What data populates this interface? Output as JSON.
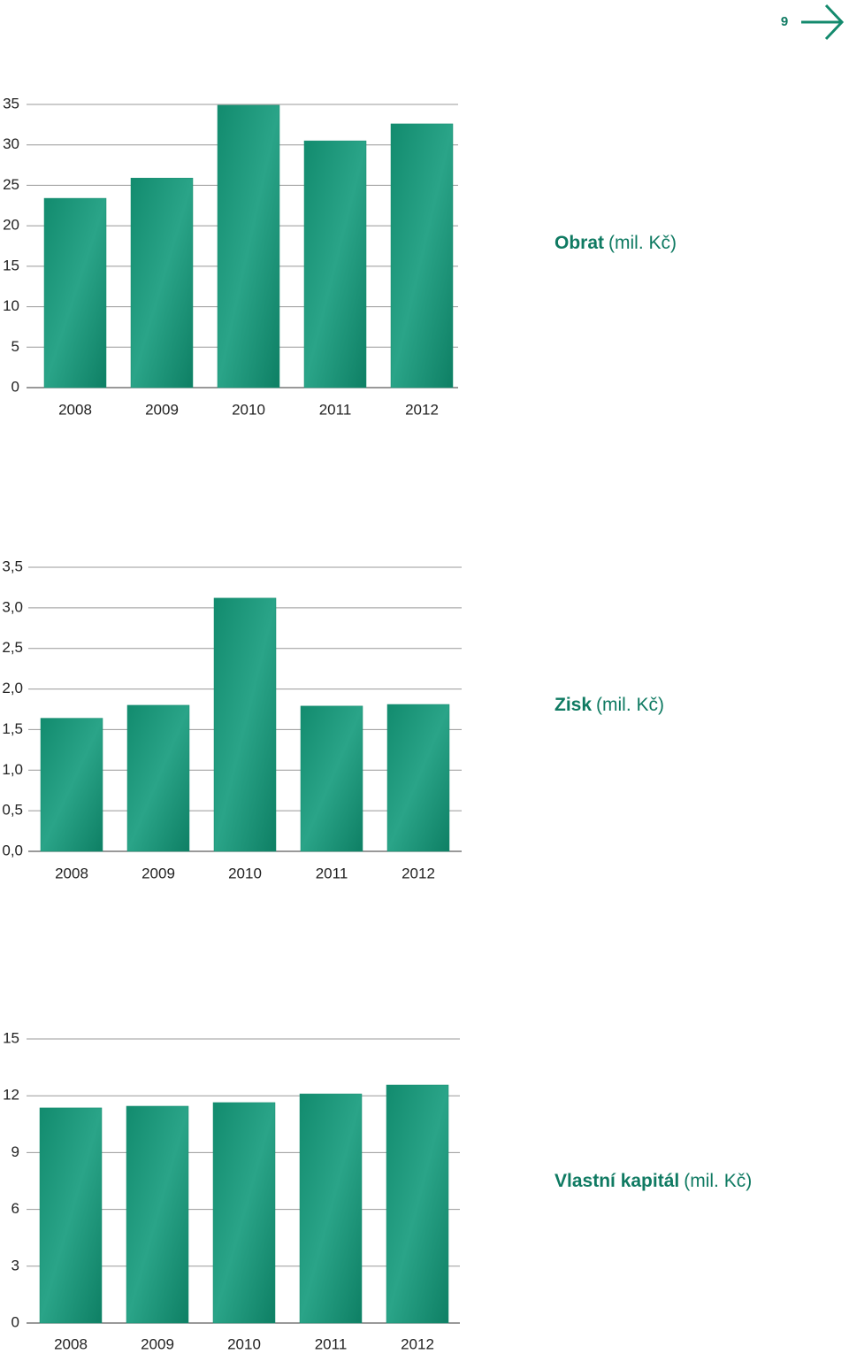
{
  "page_number": "9",
  "chart_data": [
    {
      "type": "bar",
      "title": "Obrat",
      "unit": "(mil. Kč)",
      "categories": [
        "2008",
        "2009",
        "2010",
        "2011",
        "2012"
      ],
      "values": [
        23.4,
        25.9,
        34.9,
        30.5,
        32.6
      ],
      "color": "#138a6d",
      "ylim": [
        0,
        35
      ],
      "yticks": [
        0,
        5,
        10,
        15,
        20,
        25,
        30,
        35
      ],
      "grid": true
    },
    {
      "type": "bar",
      "title": "Zisk",
      "unit": "(mil. Kč)",
      "categories": [
        "2008",
        "2009",
        "2010",
        "2011",
        "2012"
      ],
      "values": [
        1.64,
        1.8,
        3.12,
        1.79,
        1.81
      ],
      "color": "#138a6d",
      "ylim": [
        0,
        3.5
      ],
      "yticks": [
        {
          "value": 0,
          "label": "0,0"
        },
        {
          "value": 0.5,
          "label": "0,5"
        },
        {
          "value": 1,
          "label": "1,0"
        },
        {
          "value": 1.5,
          "label": "1,5"
        },
        {
          "value": 2,
          "label": "2,0"
        },
        {
          "value": 2.5,
          "label": "2,5"
        },
        {
          "value": 3,
          "label": "3,0"
        },
        {
          "value": 3.5,
          "label": "3,5"
        }
      ],
      "grid": true
    },
    {
      "type": "bar",
      "title": "Vlastní kapitál",
      "unit": "(mil. Kč)",
      "categories": [
        "2008",
        "2009",
        "2010",
        "2011",
        "2012"
      ],
      "values": [
        11.36,
        11.45,
        11.64,
        12.1,
        12.57
      ],
      "color": "#138a6d",
      "ylim": [
        0,
        15
      ],
      "yticks": [
        0,
        3,
        6,
        9,
        12,
        15
      ],
      "grid": true
    }
  ]
}
